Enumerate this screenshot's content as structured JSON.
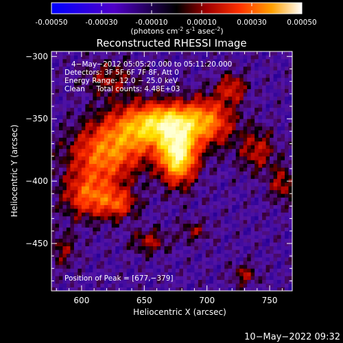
{
  "chart_data": {
    "type": "heatmap",
    "title": "Reconstructed RHESSI Image",
    "colorbar": {
      "ticks": [
        "-0.00050",
        "-0.00030",
        "-0.00010",
        "0.00010",
        "0.00030",
        "0.00050"
      ],
      "tick_values": [
        -0.0005,
        -0.0003,
        -0.0001,
        0.0001,
        0.0003,
        0.0005
      ],
      "range": [
        -0.0005,
        0.0005
      ],
      "units_main": "(photons cm",
      "units_sup1": "-2",
      "units_mid": " s",
      "units_sup2": "-1",
      "units_mid2": " asec",
      "units_sup3": "-2",
      "units_end": ")"
    },
    "xlabel": "Heliocentric X (arcsec)",
    "ylabel": "Heliocentric Y (arcsec)",
    "xlim": [
      576,
      768
    ],
    "ylim": [
      -488,
      -296
    ],
    "xticks": [
      600,
      650,
      700,
      750
    ],
    "xtick_labels": [
      "600",
      "650",
      "700",
      "750"
    ],
    "yticks": [
      -300,
      -350,
      -400,
      -450
    ],
    "ytick_labels": [
      "−300",
      "−350",
      "−400",
      "−450"
    ],
    "annotations": [
      "4−May−2012 05:05:20.000 to 05:11:20.000",
      "Detectors: 3F 5F 6F 7F 8F, Att 0",
      "Energy Range: 12.0 − 25.0 keV",
      "Clean     Total counts: 4.48E+03"
    ],
    "peak_label": "Position of Peak = [677,−379]",
    "peak": [
      677,
      -379
    ],
    "sources": [
      {
        "x": 677,
        "y": -379,
        "sx": 10,
        "sy": 15,
        "amp": 1.0
      },
      {
        "x": 672,
        "y": -352,
        "sx": 18,
        "sy": 10,
        "amp": 0.55
      },
      {
        "x": 648,
        "y": -358,
        "sx": 22,
        "sy": 14,
        "amp": 0.6
      },
      {
        "x": 618,
        "y": -380,
        "sx": 20,
        "sy": 16,
        "amp": 0.55
      },
      {
        "x": 606,
        "y": -412,
        "sx": 14,
        "sy": 12,
        "amp": 0.5
      },
      {
        "x": 630,
        "y": -418,
        "sx": 10,
        "sy": 8,
        "amp": 0.4
      },
      {
        "x": 702,
        "y": -352,
        "sx": 14,
        "sy": 14,
        "amp": 0.5
      },
      {
        "x": 720,
        "y": -325,
        "sx": 8,
        "sy": 8,
        "amp": 0.35
      },
      {
        "x": 740,
        "y": -375,
        "sx": 10,
        "sy": 12,
        "amp": 0.32
      },
      {
        "x": 760,
        "y": -402,
        "sx": 7,
        "sy": 10,
        "amp": 0.3
      },
      {
        "x": 623,
        "y": -318,
        "sx": 14,
        "sy": 10,
        "amp": 0.25
      },
      {
        "x": 654,
        "y": -448,
        "sx": 10,
        "sy": 7,
        "amp": 0.28
      },
      {
        "x": 690,
        "y": -440,
        "sx": 8,
        "sy": 6,
        "amp": 0.22
      },
      {
        "x": 730,
        "y": -475,
        "sx": 7,
        "sy": 6,
        "amp": 0.26
      },
      {
        "x": 585,
        "y": -455,
        "sx": 8,
        "sy": 10,
        "amp": 0.22
      }
    ]
  },
  "footer": {
    "timestamp": "10−May−2022 09:32"
  },
  "colors": {
    "background": "#000000",
    "text": "#ffffff"
  }
}
